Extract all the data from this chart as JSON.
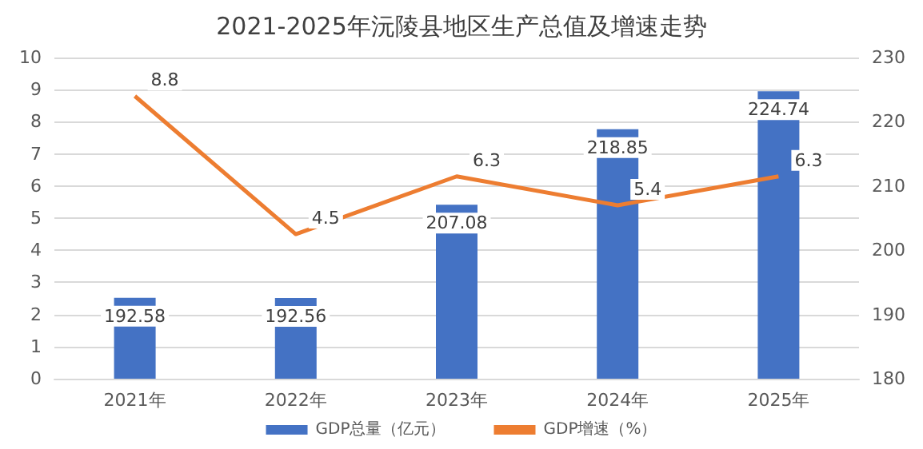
{
  "chart_data": {
    "type": "bar",
    "title": "2021-2025年沅陵县地区生产总值及增速走势",
    "categories": [
      "2021年",
      "2022年",
      "2023年",
      "2024年",
      "2025年"
    ],
    "series": [
      {
        "name": "GDP总量（亿元）",
        "axis": "y2",
        "color": "#4472c4",
        "values": [
          192.58,
          192.56,
          207.08,
          218.85,
          224.74
        ]
      },
      {
        "name": "GDP增速（%）",
        "type": "line",
        "color": "#ed7d31",
        "values": [
          8.8,
          4.5,
          6.3,
          5.4,
          6.3
        ]
      }
    ],
    "ylim": [
      0,
      10
    ],
    "yticks": [
      0,
      1,
      2,
      3,
      4,
      5,
      6,
      7,
      8,
      9,
      10
    ],
    "y2lim": [
      180,
      230
    ],
    "y2ticks": [
      180,
      190,
      200,
      210,
      220,
      230
    ],
    "grid": "y",
    "legend": "bottom",
    "data_labels": true,
    "marker": "none",
    "line_style": "solid"
  }
}
